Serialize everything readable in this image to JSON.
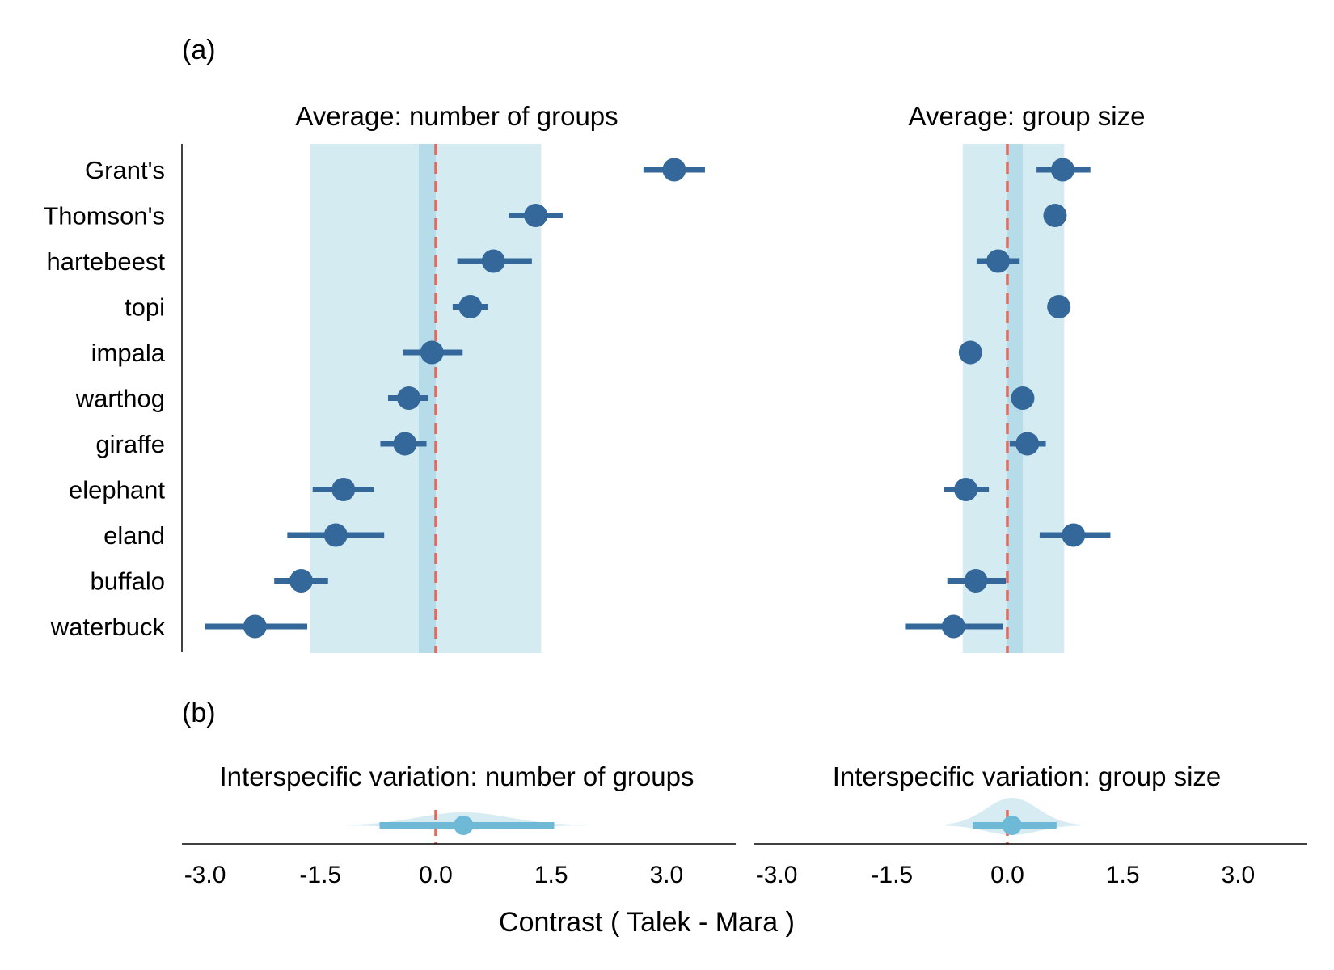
{
  "figure": {
    "panel_a_label": "(a)",
    "panel_b_label": "(b)",
    "xlabel": "Contrast ( Talek - Mara )",
    "colors": {
      "point": "#35689a",
      "band_outer": "#d4ebf2",
      "band_inner": "#b6dcea",
      "reference_line": "#e46a60",
      "posterior": "#6db9d6",
      "density": "#cfe7f0",
      "axis": "#000000"
    }
  },
  "chart_data": [
    {
      "type": "scatter",
      "subtype": "point-interval",
      "title": "Average: number of groups",
      "categories": [
        "Grant's",
        "Thomson's",
        "hartebeest",
        "topi",
        "impala",
        "warthog",
        "giraffe",
        "elephant",
        "eland",
        "buffalo",
        "waterbuck"
      ],
      "estimate": [
        3.1,
        1.3,
        0.75,
        0.45,
        -0.05,
        -0.35,
        -0.4,
        -1.2,
        -1.3,
        -1.75,
        -2.35
      ],
      "lower": [
        2.7,
        0.95,
        0.28,
        0.22,
        -0.43,
        -0.62,
        -0.72,
        -1.6,
        -1.93,
        -2.1,
        -3.0
      ],
      "upper": [
        3.5,
        1.65,
        1.25,
        0.68,
        0.35,
        -0.1,
        -0.12,
        -0.8,
        -0.67,
        -1.4,
        -1.67
      ],
      "ref_line": 0,
      "band_outer": [
        -1.63,
        1.37
      ],
      "band_inner": [
        -0.22,
        0.0
      ],
      "xlim": [
        -3.3,
        3.9
      ]
    },
    {
      "type": "scatter",
      "subtype": "point-interval",
      "title": "Average: group size",
      "categories": [
        "Grant's",
        "Thomson's",
        "hartebeest",
        "topi",
        "impala",
        "warthog",
        "giraffe",
        "elephant",
        "eland",
        "buffalo",
        "waterbuck"
      ],
      "estimate": [
        0.72,
        0.62,
        -0.12,
        0.67,
        -0.48,
        0.2,
        0.26,
        -0.54,
        0.86,
        -0.41,
        -0.7
      ],
      "lower": [
        0.38,
        0.62,
        -0.4,
        0.67,
        -0.48,
        0.2,
        0.03,
        -0.82,
        0.42,
        -0.78,
        -1.33
      ],
      "upper": [
        1.08,
        0.62,
        0.16,
        0.67,
        -0.48,
        0.2,
        0.5,
        -0.24,
        1.34,
        -0.02,
        -0.06
      ],
      "ref_line": 0,
      "band_outer": [
        -0.58,
        0.74
      ],
      "band_inner": [
        0.0,
        0.2
      ],
      "xlim": [
        -3.3,
        3.9
      ]
    },
    {
      "type": "area",
      "subtype": "posterior-density",
      "title": "Interspecific variation: number of groups",
      "estimate": 0.36,
      "lower": -0.73,
      "upper": 1.54,
      "density_extent": [
        -1.15,
        1.95
      ],
      "ref_line": 0,
      "xticks": [
        -3.0,
        -1.5,
        0.0,
        1.5,
        3.0
      ],
      "tick_labels": [
        "-3.0",
        "-1.5",
        "0.0",
        "1.5",
        "3.0"
      ],
      "xlim": [
        -3.3,
        3.9
      ]
    },
    {
      "type": "area",
      "subtype": "posterior-density",
      "title": "Interspecific variation: group size",
      "estimate": 0.06,
      "lower": -0.45,
      "upper": 0.64,
      "density_extent": [
        -0.8,
        0.95
      ],
      "ref_line": 0,
      "xticks": [
        -3.0,
        -1.5,
        0.0,
        1.5,
        3.0
      ],
      "tick_labels": [
        "-3.0",
        "-1.5",
        "0.0",
        "1.5",
        "3.0"
      ],
      "xlim": [
        -3.3,
        3.9
      ]
    }
  ]
}
